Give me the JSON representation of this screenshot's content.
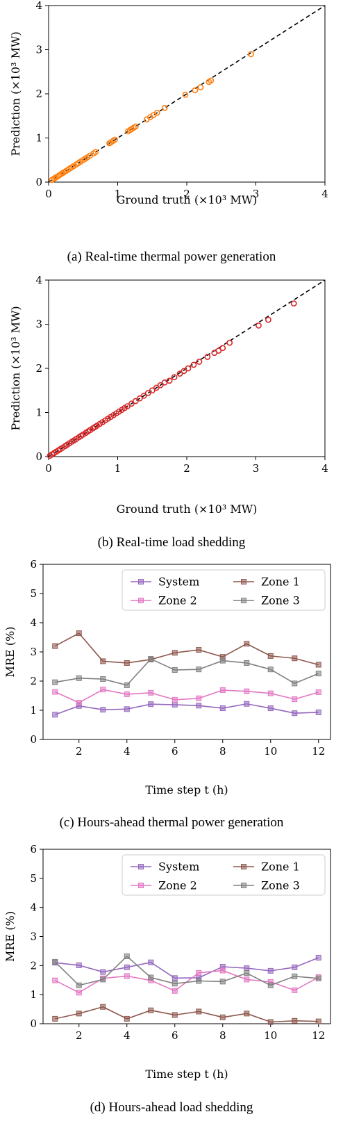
{
  "chart_data": [
    {
      "type": "scatter",
      "caption": "(a) Real-time thermal power generation",
      "xlabel": "Ground truth (×10³ MW)",
      "ylabel": "Prediction (×10³ MW)",
      "xlim": [
        0,
        4
      ],
      "ylim": [
        0,
        4
      ],
      "xticks": [
        "0",
        "1",
        "2",
        "3",
        "4"
      ],
      "yticks": [
        "0",
        "1",
        "2",
        "3",
        "4"
      ],
      "marker_color": "#ff7f0e",
      "reference_line": "y = x (dashed)",
      "x": [
        0.05,
        0.08,
        0.1,
        0.12,
        0.15,
        0.18,
        0.2,
        0.22,
        0.25,
        0.28,
        0.3,
        0.33,
        0.36,
        0.4,
        0.43,
        0.46,
        0.5,
        0.53,
        0.56,
        0.6,
        0.65,
        0.68,
        0.88,
        0.9,
        0.93,
        0.96,
        1.15,
        1.18,
        1.2,
        1.23,
        1.26,
        1.42,
        1.47,
        1.52,
        1.57,
        1.68,
        1.98,
        2.12,
        2.2,
        2.32,
        2.35,
        2.93
      ],
      "y": [
        0.05,
        0.08,
        0.1,
        0.12,
        0.15,
        0.18,
        0.2,
        0.22,
        0.25,
        0.28,
        0.3,
        0.33,
        0.36,
        0.4,
        0.43,
        0.46,
        0.5,
        0.53,
        0.56,
        0.6,
        0.65,
        0.68,
        0.88,
        0.9,
        0.93,
        0.96,
        1.15,
        1.18,
        1.2,
        1.23,
        1.26,
        1.42,
        1.47,
        1.52,
        1.57,
        1.68,
        1.98,
        2.08,
        2.15,
        2.27,
        2.3,
        2.9
      ]
    },
    {
      "type": "scatter",
      "caption": "(b) Real-time load shedding",
      "xlabel": "Ground truth (×10³ MW)",
      "ylabel": "Prediction (×10³ MW)",
      "xlim": [
        0,
        4
      ],
      "ylim": [
        0,
        4
      ],
      "xticks": [
        "0",
        "1",
        "2",
        "3",
        "4"
      ],
      "yticks": [
        "0",
        "1",
        "2",
        "3",
        "4"
      ],
      "marker_color": "#d62728",
      "reference_line": "y = x (dashed)",
      "x": [
        0.02,
        0.05,
        0.08,
        0.11,
        0.14,
        0.17,
        0.2,
        0.24,
        0.27,
        0.3,
        0.34,
        0.37,
        0.4,
        0.44,
        0.47,
        0.5,
        0.54,
        0.57,
        0.6,
        0.64,
        0.67,
        0.7,
        0.74,
        0.78,
        0.82,
        0.86,
        0.9,
        0.94,
        0.98,
        1.02,
        1.06,
        1.1,
        1.14,
        1.2,
        1.26,
        1.32,
        1.38,
        1.44,
        1.5,
        1.56,
        1.62,
        1.68,
        1.75,
        1.82,
        1.9,
        1.96,
        2.02,
        2.1,
        2.18,
        2.3,
        2.4,
        2.46,
        2.52,
        2.62,
        3.04,
        3.18,
        3.55
      ],
      "y": [
        0.02,
        0.05,
        0.08,
        0.11,
        0.14,
        0.17,
        0.2,
        0.24,
        0.27,
        0.3,
        0.34,
        0.37,
        0.4,
        0.44,
        0.47,
        0.5,
        0.54,
        0.57,
        0.6,
        0.64,
        0.67,
        0.7,
        0.74,
        0.78,
        0.82,
        0.86,
        0.9,
        0.94,
        0.98,
        1.02,
        1.06,
        1.1,
        1.14,
        1.2,
        1.26,
        1.32,
        1.38,
        1.44,
        1.5,
        1.56,
        1.62,
        1.68,
        1.72,
        1.8,
        1.88,
        1.94,
        2.0,
        2.08,
        2.15,
        2.26,
        2.35,
        2.4,
        2.46,
        2.58,
        2.97,
        3.1,
        3.47
      ]
    },
    {
      "type": "line",
      "caption": "(c) Hours-ahead thermal power generation",
      "xlabel": "Time step t (h)",
      "ylabel": "MRE (%)",
      "xlim": [
        0.5,
        12.5
      ],
      "ylim": [
        0,
        6
      ],
      "xticks": [
        "2",
        "4",
        "6",
        "8",
        "10",
        "12"
      ],
      "yticks": [
        "0",
        "1",
        "2",
        "3",
        "4",
        "5",
        "6"
      ],
      "x": [
        1,
        2,
        3,
        4,
        5,
        6,
        7,
        8,
        9,
        10,
        11,
        12
      ],
      "legend": "top-right",
      "series": [
        {
          "name": "System",
          "color": "#9467bd",
          "values": [
            0.85,
            1.15,
            1.02,
            1.04,
            1.21,
            1.19,
            1.16,
            1.07,
            1.22,
            1.07,
            0.9,
            0.93
          ]
        },
        {
          "name": "Zone 1",
          "color": "#8c564b",
          "values": [
            3.2,
            3.64,
            2.68,
            2.62,
            2.74,
            2.97,
            3.07,
            2.83,
            3.28,
            2.86,
            2.78,
            2.56
          ]
        },
        {
          "name": "Zone 2",
          "color": "#e377c2",
          "values": [
            1.63,
            1.26,
            1.71,
            1.55,
            1.6,
            1.36,
            1.41,
            1.69,
            1.65,
            1.58,
            1.38,
            1.62
          ]
        },
        {
          "name": "Zone 3",
          "color": "#7f7f7f",
          "values": [
            1.96,
            2.1,
            2.07,
            1.86,
            2.76,
            2.38,
            2.4,
            2.7,
            2.62,
            2.4,
            1.92,
            2.26
          ]
        }
      ]
    },
    {
      "type": "line",
      "caption": "(d) Hours-ahead load shedding",
      "xlabel": "Time step t (h)",
      "ylabel": "MRE (%)",
      "xlim": [
        0.5,
        12.5
      ],
      "ylim": [
        0,
        6
      ],
      "xticks": [
        "2",
        "4",
        "6",
        "8",
        "10",
        "12"
      ],
      "yticks": [
        "0",
        "1",
        "2",
        "3",
        "4",
        "5",
        "6"
      ],
      "x": [
        1,
        2,
        3,
        4,
        5,
        6,
        7,
        8,
        9,
        10,
        11,
        12
      ],
      "legend": "top-right",
      "series": [
        {
          "name": "System",
          "color": "#9467bd",
          "values": [
            2.1,
            2.01,
            1.78,
            1.94,
            2.11,
            1.57,
            1.58,
            1.96,
            1.91,
            1.82,
            1.94,
            2.27
          ]
        },
        {
          "name": "Zone 1",
          "color": "#8c564b",
          "values": [
            0.17,
            0.35,
            0.58,
            0.17,
            0.46,
            0.3,
            0.42,
            0.22,
            0.35,
            0.06,
            0.1,
            0.08
          ]
        },
        {
          "name": "Zone 2",
          "color": "#e377c2",
          "values": [
            1.49,
            1.07,
            1.56,
            1.64,
            1.49,
            1.13,
            1.75,
            1.83,
            1.52,
            1.44,
            1.15,
            1.6
          ]
        },
        {
          "name": "Zone 3",
          "color": "#7f7f7f",
          "values": [
            2.13,
            1.32,
            1.52,
            2.32,
            1.59,
            1.38,
            1.47,
            1.45,
            1.74,
            1.32,
            1.63,
            1.56
          ]
        }
      ]
    }
  ]
}
